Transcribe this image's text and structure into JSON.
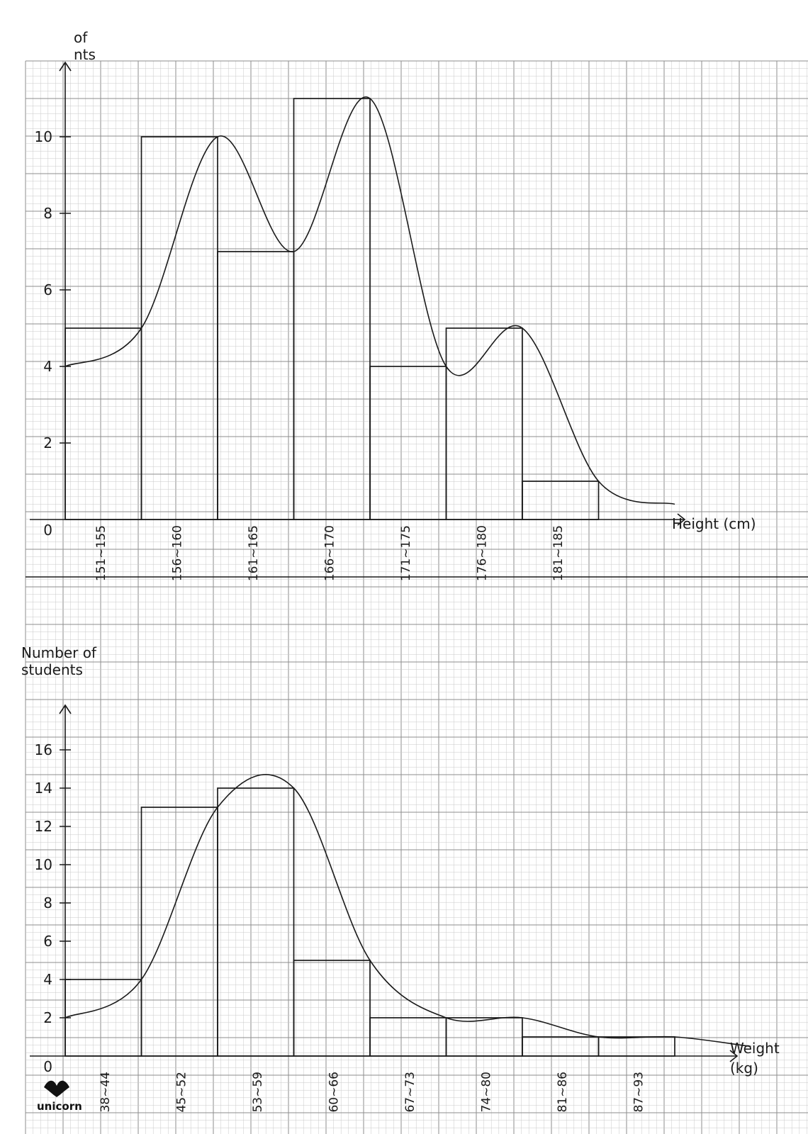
{
  "chart_data": [
    {
      "type": "bar",
      "xlabel": "Height (cm)",
      "ylabel": "of\nnts",
      "categories": [
        "151~155",
        "156~160",
        "161~165",
        "166~170",
        "171~175",
        "176~180",
        "181~185"
      ],
      "values": [
        5,
        10,
        7,
        11,
        4,
        5,
        1
      ],
      "curve": [
        4,
        5,
        10,
        7,
        11,
        4,
        5,
        1,
        0.4
      ],
      "yticks": [
        "0",
        "2",
        "4",
        "6",
        "8",
        "10"
      ],
      "ylim": [
        0,
        12
      ]
    },
    {
      "type": "bar",
      "xlabel": "Weight\n(kg)",
      "ylabel": "Number of\nstudents",
      "categories": [
        "38~44",
        "45~52",
        "53~59",
        "60~66",
        "67~73",
        "74~80",
        "81~86",
        "87~93"
      ],
      "values": [
        4,
        13,
        14,
        5,
        2,
        2,
        1,
        1
      ],
      "curve": [
        2,
        4,
        13,
        14,
        5,
        2,
        2,
        1,
        1,
        0.5
      ],
      "yticks": [
        "0",
        "2",
        "4",
        "6",
        "8",
        "10",
        "12",
        "14",
        "16"
      ],
      "ylim": [
        0,
        18
      ]
    }
  ],
  "logo": "unicorn",
  "colors": {
    "grid_minor": "#c9c9c9",
    "grid_major": "#8d8d8d",
    "ink": "#1a1a1a"
  }
}
